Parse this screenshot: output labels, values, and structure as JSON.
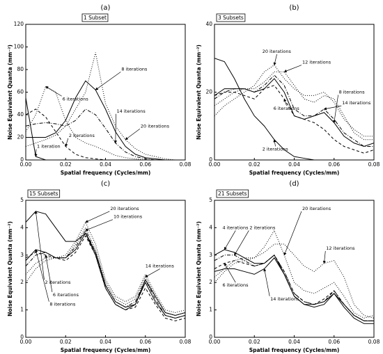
{
  "chart_data": [
    {
      "type": "line",
      "label": "(a)",
      "subset": "1 Subset",
      "xlabel": "Spatial frequency (Cycles/mm)",
      "ylabel": "Noise Equivalent Quanta (mm⁻²)",
      "x": [
        0,
        0.005,
        0.01,
        0.015,
        0.02,
        0.025,
        0.03,
        0.035,
        0.04,
        0.045,
        0.05,
        0.055,
        0.06,
        0.065,
        0.07,
        0.075,
        0.08
      ],
      "xlim": [
        0,
        0.08
      ],
      "ylim": [
        0,
        120
      ],
      "xticks": [
        {
          "value": 0,
          "label": "0.00"
        },
        {
          "value": 0.02,
          "label": "0.02"
        },
        {
          "value": 0.04,
          "label": "0.04"
        },
        {
          "value": 0.06,
          "label": "0.06"
        },
        {
          "value": 0.08,
          "label": "0.08"
        }
      ],
      "yticks": [
        0,
        20,
        40,
        60,
        80,
        100,
        120
      ],
      "series": [
        {
          "name": "1 iteration",
          "color": "#000000",
          "dash": "solid",
          "values": [
            55,
            3,
            0,
            0,
            0,
            0,
            0,
            0,
            0,
            0,
            0,
            0,
            0,
            0,
            0,
            0,
            0
          ]
        },
        {
          "name": "2 iterations",
          "color": "#000000",
          "dash": "dashed",
          "values": [
            40,
            45,
            38,
            25,
            12,
            5,
            2,
            1,
            0,
            0,
            0,
            0,
            0,
            0,
            0,
            0,
            0
          ]
        },
        {
          "name": "6 iterations",
          "color": "#000000",
          "dash": "dotted",
          "values": [
            25,
            40,
            65,
            60,
            35,
            20,
            15,
            12,
            8,
            4,
            2,
            1,
            0,
            0,
            0,
            0,
            0
          ]
        },
        {
          "name": "8 iterations",
          "color": "#000000",
          "dash": "solid",
          "values": [
            20,
            20,
            20,
            24,
            35,
            55,
            70,
            62,
            45,
            25,
            12,
            5,
            2,
            1,
            0,
            0,
            0
          ]
        },
        {
          "name": "14 iterations",
          "color": "#000000",
          "dash": "dashdot",
          "values": [
            30,
            32,
            33,
            32,
            30,
            35,
            45,
            40,
            28,
            15,
            7,
            3,
            1,
            0,
            0,
            0,
            0
          ]
        },
        {
          "name": "20 iterations",
          "color": "#000000",
          "dash": "dotted",
          "values": [
            12,
            15,
            18,
            22,
            30,
            45,
            60,
            95,
            50,
            30,
            18,
            10,
            5,
            3,
            1,
            0,
            0
          ]
        }
      ]
    },
    {
      "type": "line",
      "label": "(b)",
      "subset": "3 Subsets",
      "xlabel": "Spatial frequency (Cycles/mm)",
      "ylabel": "Noise Equivalent Quanta (mm⁻²)",
      "x": [
        0,
        0.005,
        0.01,
        0.015,
        0.02,
        0.025,
        0.03,
        0.035,
        0.04,
        0.045,
        0.05,
        0.055,
        0.06,
        0.065,
        0.07,
        0.075,
        0.08
      ],
      "xlim": [
        0,
        0.08
      ],
      "ylim": [
        0,
        40
      ],
      "xticks": [
        {
          "value": 0,
          "label": "0.00"
        },
        {
          "value": 0.02,
          "label": "0.02"
        },
        {
          "value": 0.04,
          "label": "0.04"
        },
        {
          "value": 0.06,
          "label": "0.06"
        },
        {
          "value": 0.08,
          "label": "0.08"
        }
      ],
      "yticks": [
        0,
        20,
        40
      ],
      "series": [
        {
          "name": "2 iterations",
          "color": "#000000",
          "dash": "solid",
          "values": [
            30,
            29,
            24,
            18,
            13,
            10,
            6,
            3,
            1,
            0.5,
            0,
            0,
            0,
            0,
            0,
            0,
            0
          ]
        },
        {
          "name": "6 iterations",
          "color": "#000000",
          "dash": "dashed",
          "values": [
            19,
            20,
            20,
            19,
            18,
            21,
            22,
            18,
            13,
            12,
            11,
            9,
            6,
            4,
            3,
            2,
            3
          ]
        },
        {
          "name": "8 iterations",
          "color": "#000000",
          "dash": "solid",
          "values": [
            19,
            21,
            21,
            21,
            20,
            21,
            24,
            20,
            13,
            12,
            13,
            14,
            11,
            7,
            5,
            4,
            5
          ]
        },
        {
          "name": "12 iterations",
          "color": "#000000",
          "dash": "dotted",
          "values": [
            16,
            18,
            20,
            21,
            21,
            23,
            26,
            26,
            22,
            18,
            17,
            19,
            18,
            13,
            8,
            6,
            6
          ]
        },
        {
          "name": "14 iterations",
          "color": "#000000",
          "dash": "dashdot",
          "values": [
            18,
            20,
            21,
            21,
            20,
            22,
            25,
            22,
            15,
            13,
            13,
            15,
            12,
            8,
            6,
            4,
            4
          ]
        },
        {
          "name": "20 iterations",
          "color": "#000000",
          "dash": "dotted",
          "values": [
            13,
            16,
            18,
            20,
            22,
            26,
            28,
            24,
            21,
            19,
            19,
            20,
            17,
            12,
            9,
            7,
            7
          ]
        }
      ]
    },
    {
      "type": "line",
      "label": "(c)",
      "subset": "15 Subsets",
      "xlabel": "Spatial frequency (Cycles/mm)",
      "ylabel": "Noise Equivalent Quanta (mm⁻²)",
      "x": [
        0,
        0.005,
        0.01,
        0.015,
        0.02,
        0.025,
        0.03,
        0.035,
        0.04,
        0.045,
        0.05,
        0.055,
        0.06,
        0.065,
        0.07,
        0.075,
        0.08
      ],
      "xlim": [
        0,
        0.08
      ],
      "ylim": [
        0,
        5
      ],
      "xticks": [
        {
          "value": 0,
          "label": "0.00"
        },
        {
          "value": 0.02,
          "label": "0.02"
        },
        {
          "value": 0.04,
          "label": "0.04"
        },
        {
          "value": 0.06,
          "label": "0.06"
        },
        {
          "value": 0.08,
          "label": "0.08"
        }
      ],
      "yticks": [
        0,
        1,
        2,
        3,
        4,
        5
      ],
      "series": [
        {
          "name": "2 iterations",
          "color": "#000000",
          "dash": "solid",
          "values": [
            4.2,
            4.6,
            4.5,
            4.0,
            3.5,
            3.5,
            3.8,
            3.0,
            1.8,
            1.2,
            1.0,
            1.2,
            2.1,
            1.5,
            0.9,
            0.8,
            0.9
          ]
        },
        {
          "name": "6 iterations",
          "color": "#000000",
          "dash": "dashed",
          "values": [
            2.9,
            3.1,
            3.0,
            2.9,
            2.8,
            3.1,
            3.7,
            3.0,
            1.8,
            1.2,
            1.0,
            1.1,
            1.8,
            1.2,
            0.7,
            0.6,
            0.7
          ]
        },
        {
          "name": "8 iterations",
          "color": "#000000",
          "dash": "solid",
          "values": [
            2.8,
            3.2,
            3.1,
            2.9,
            2.9,
            3.2,
            3.8,
            3.1,
            1.9,
            1.3,
            1.1,
            1.2,
            2.0,
            1.3,
            0.8,
            0.7,
            0.8
          ]
        },
        {
          "name": "10 iterations",
          "color": "#000000",
          "dash": "dashdot",
          "values": [
            2.6,
            3.0,
            3.1,
            2.9,
            2.9,
            3.3,
            3.9,
            3.1,
            1.9,
            1.3,
            1.1,
            1.3,
            2.1,
            1.4,
            0.8,
            0.7,
            0.8
          ]
        },
        {
          "name": "14 iterations",
          "color": "#000000",
          "dash": "dotted",
          "values": [
            2.3,
            2.7,
            2.9,
            2.9,
            2.9,
            3.4,
            4.0,
            3.2,
            2.0,
            1.4,
            1.2,
            1.4,
            2.2,
            1.5,
            0.9,
            0.8,
            0.9
          ]
        },
        {
          "name": "20 iterations",
          "color": "#000000",
          "dash": "dotted",
          "values": [
            2.0,
            2.5,
            2.8,
            2.9,
            3.0,
            3.5,
            4.2,
            3.4,
            2.1,
            1.5,
            1.3,
            1.5,
            2.3,
            1.6,
            1.0,
            0.9,
            1.0
          ]
        }
      ]
    },
    {
      "type": "line",
      "label": "(d)",
      "subset": "21 Subsets",
      "xlabel": "Spatial frequency (Cycles/mm)",
      "ylabel": "Noise Equivalent Quanta (mm⁻²)",
      "x": [
        0,
        0.005,
        0.01,
        0.015,
        0.02,
        0.025,
        0.03,
        0.035,
        0.04,
        0.045,
        0.05,
        0.055,
        0.06,
        0.065,
        0.07,
        0.075,
        0.08
      ],
      "xlim": [
        0,
        0.08
      ],
      "ylim": [
        0,
        5
      ],
      "xticks": [
        {
          "value": 0,
          "label": "0.00"
        },
        {
          "value": 0.02,
          "label": "0.02"
        },
        {
          "value": 0.04,
          "label": "0.04"
        },
        {
          "value": 0.06,
          "label": "0.06"
        },
        {
          "value": 0.08,
          "label": "0.08"
        }
      ],
      "yticks": [
        0,
        1,
        2,
        3,
        4,
        5
      ],
      "series": [
        {
          "name": "2 iterations",
          "color": "#000000",
          "dash": "dashdot",
          "values": [
            2.8,
            3.0,
            3.0,
            2.8,
            2.6,
            2.7,
            3.0,
            2.4,
            1.6,
            1.3,
            1.2,
            1.3,
            1.7,
            1.2,
            0.8,
            0.6,
            0.6
          ]
        },
        {
          "name": "4 iterations",
          "color": "#000000",
          "dash": "solid",
          "values": [
            3.0,
            3.2,
            3.1,
            2.9,
            2.7,
            2.7,
            3.0,
            2.3,
            1.5,
            1.2,
            1.1,
            1.2,
            1.6,
            1.1,
            0.7,
            0.5,
            0.5
          ]
        },
        {
          "name": "6 iterations",
          "color": "#000000",
          "dash": "dashed",
          "values": [
            2.5,
            2.7,
            2.8,
            2.7,
            2.6,
            2.7,
            3.0,
            2.4,
            1.6,
            1.3,
            1.2,
            1.4,
            1.7,
            1.2,
            0.8,
            0.6,
            0.6
          ]
        },
        {
          "name": "12 iterations",
          "color": "#000000",
          "dash": "dotted",
          "values": [
            2.2,
            2.5,
            2.8,
            2.9,
            2.9,
            3.1,
            3.4,
            3.4,
            3.0,
            2.6,
            2.4,
            2.7,
            2.8,
            2.2,
            1.2,
            0.8,
            0.7
          ]
        },
        {
          "name": "14 iterations",
          "color": "#000000",
          "dash": "solid",
          "values": [
            2.4,
            2.5,
            2.5,
            2.4,
            2.3,
            2.5,
            2.9,
            2.3,
            1.5,
            1.2,
            1.2,
            1.3,
            1.6,
            1.2,
            0.8,
            0.6,
            0.6
          ]
        },
        {
          "name": "20 iterations",
          "color": "#000000",
          "dash": "dotted",
          "values": [
            2.0,
            2.4,
            2.7,
            2.8,
            2.9,
            3.3,
            3.9,
            3.0,
            2.0,
            1.7,
            1.6,
            1.8,
            2.0,
            1.5,
            0.9,
            0.7,
            0.8
          ]
        }
      ]
    }
  ]
}
